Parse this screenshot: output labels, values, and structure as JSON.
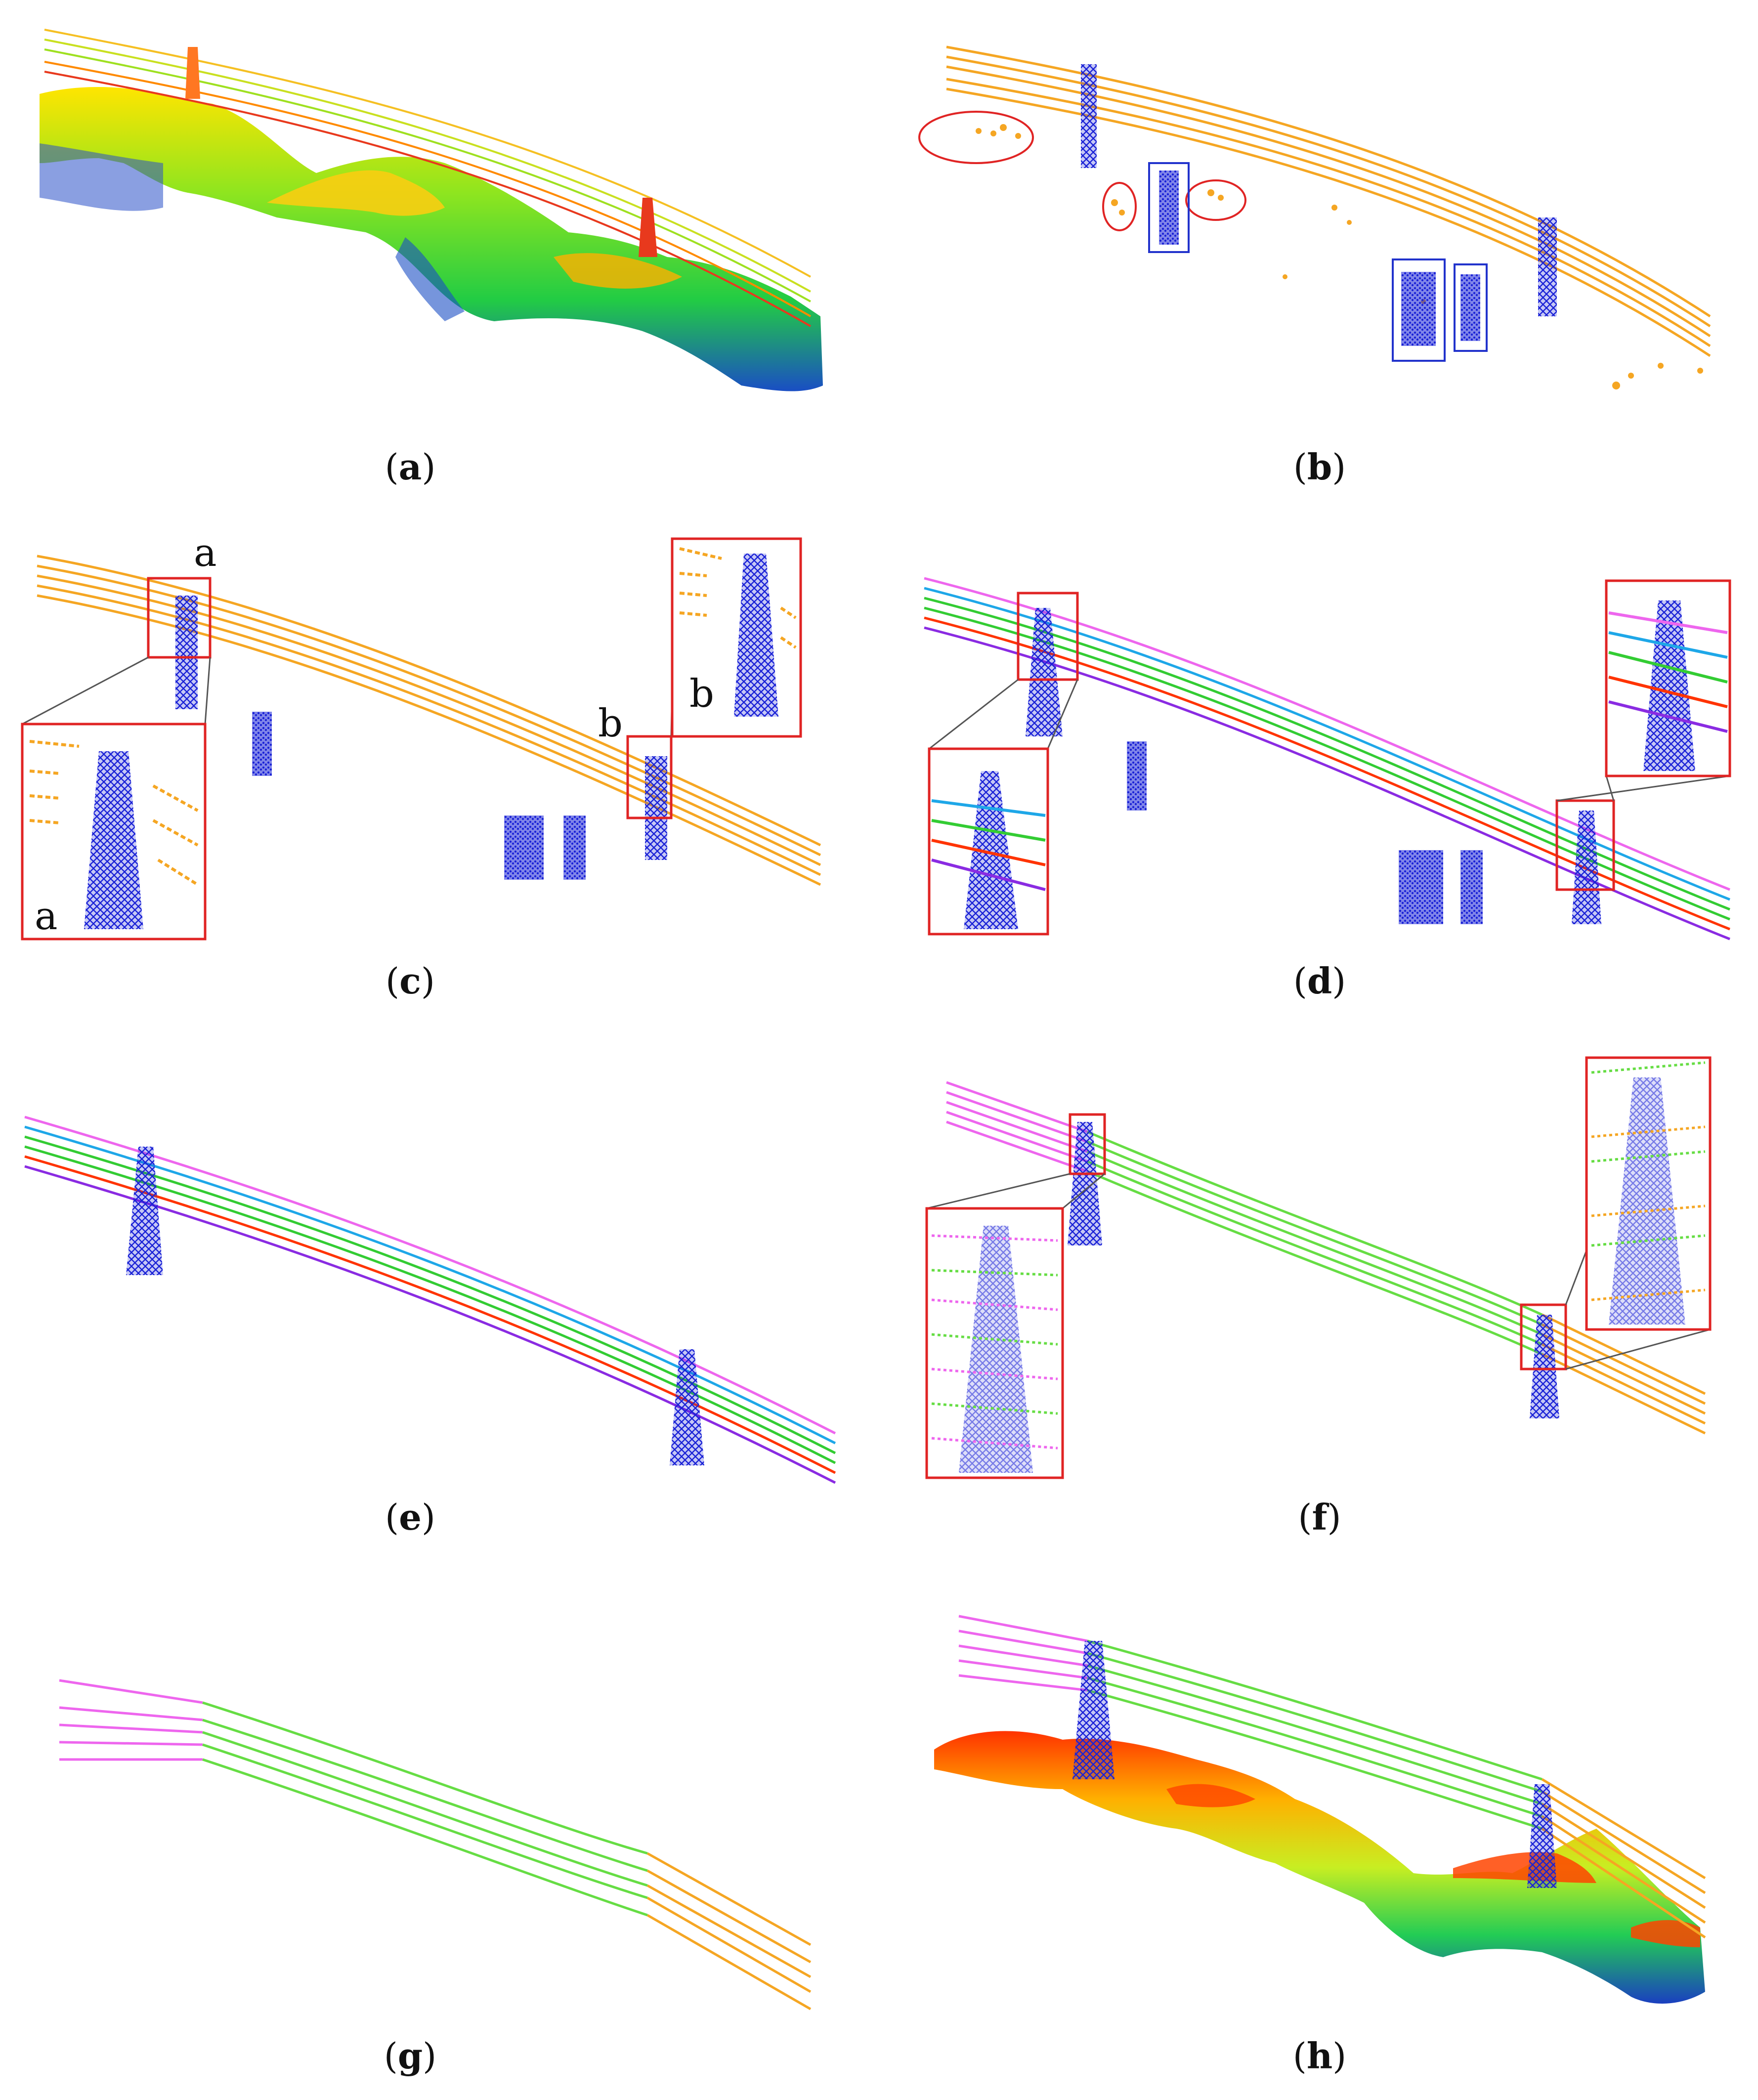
{
  "panels": [
    {
      "id": "a",
      "caption": {
        "open": "(",
        "letter": "a",
        "close": ")"
      }
    },
    {
      "id": "b",
      "caption": {
        "open": "(",
        "letter": "b",
        "close": ")"
      }
    },
    {
      "id": "c",
      "caption": {
        "open": "(",
        "letter": "c",
        "close": ")"
      },
      "inset_labels": [
        "a",
        "a",
        "b",
        "b"
      ]
    },
    {
      "id": "d",
      "caption": {
        "open": "(",
        "letter": "d",
        "close": ")"
      }
    },
    {
      "id": "e",
      "caption": {
        "open": "(",
        "letter": "e",
        "close": ")"
      }
    },
    {
      "id": "f",
      "caption": {
        "open": "(",
        "letter": "f",
        "close": ")"
      }
    },
    {
      "id": "g",
      "caption": {
        "open": "(",
        "letter": "g",
        "close": ")"
      }
    },
    {
      "id": "h",
      "caption": {
        "open": "(",
        "letter": "h",
        "close": ")"
      }
    }
  ],
  "colors": {
    "conductor_orange": "#f5a623",
    "conductor_red": "#e8391d",
    "pylon_blue": "#1a22d6",
    "inset_frame": "#e02424",
    "outlier_circle": "#e02424",
    "object_box": "#2233cc",
    "phase_violet": "#8a2be2",
    "phase_cyan": "#1ea7e8",
    "phase_green": "#33cc33",
    "phase_red": "#ff3300",
    "phase_magenta": "#ee66ee",
    "span_green": "#66dd44",
    "terrain_low": "#1a3fc0",
    "terrain_mid": "#33dd33",
    "terrain_high": "#ffd700",
    "terrain_peak": "#ff4400"
  }
}
